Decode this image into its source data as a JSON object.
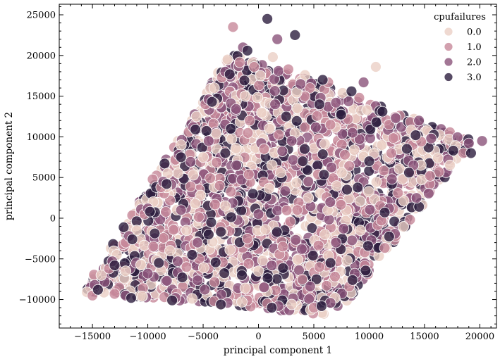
{
  "chart_data": {
    "type": "scatter",
    "xlabel": "principal component 1",
    "ylabel": "principal component 2",
    "xlim": [
      -18000,
      21500
    ],
    "ylim": [
      -13500,
      26300
    ],
    "xticks": [
      -15000,
      -10000,
      -5000,
      0,
      5000,
      10000,
      15000,
      20000
    ],
    "yticks": [
      -10000,
      -5000,
      0,
      5000,
      10000,
      15000,
      20000,
      25000
    ],
    "xtick_labels": [
      "−15000",
      "−10000",
      "−5000",
      "0",
      "5000",
      "10000",
      "15000",
      "20000"
    ],
    "ytick_labels": [
      "−10000",
      "−5000",
      "0",
      "5000",
      "10000",
      "15000",
      "20000",
      "25000"
    ],
    "legend": {
      "title": "cpufailures",
      "placement": "top-right",
      "entries": [
        "0.0",
        "1.0",
        "2.0",
        "3.0"
      ]
    },
    "grid": false,
    "marker_alpha": 0.8,
    "cloud_shape": "parallelogram",
    "cloud_corners": [
      [
        -15800,
        -9000
      ],
      [
        -2500,
        20500
      ],
      [
        19500,
        9500
      ],
      [
        7000,
        -12000
      ]
    ],
    "series": [
      {
        "name": "0.0",
        "color": "#ebcfc6",
        "points": [
          [
            -15500,
            -9100
          ],
          [
            -14200,
            -7000
          ],
          [
            -12800,
            -4500
          ],
          [
            -11000,
            -1500
          ],
          [
            -9500,
            2000
          ],
          [
            -8200,
            5500
          ],
          [
            -7000,
            9000
          ],
          [
            -5600,
            12500
          ],
          [
            -4000,
            16000
          ],
          [
            -2800,
            19500
          ],
          [
            1300,
            19800
          ],
          [
            4200,
            17600
          ],
          [
            7600,
            15400
          ],
          [
            10600,
            18600
          ],
          [
            9800,
            13300
          ],
          [
            13800,
            10800
          ],
          [
            17800,
            8900
          ],
          [
            16200,
            7400
          ],
          [
            13000,
            4800
          ],
          [
            10500,
            2300
          ],
          [
            9200,
            -1500
          ],
          [
            8000,
            -5200
          ],
          [
            6900,
            -9800
          ],
          [
            3000,
            -10600
          ],
          [
            -1500,
            -10300
          ],
          [
            -6000,
            -9900
          ],
          [
            -10500,
            -9600
          ],
          [
            -8000,
            -4000
          ],
          [
            -3000,
            1500
          ],
          [
            2000,
            5600
          ],
          [
            6000,
            -2000
          ],
          [
            -5000,
            7500
          ],
          [
            1000,
            11000
          ],
          [
            4500,
            2500
          ],
          [
            -12000,
            -6500
          ],
          [
            0,
            -6500
          ],
          [
            17300,
            6500
          ],
          [
            -1200,
            15000
          ],
          [
            3500,
            13500
          ],
          [
            -6500,
            -1500
          ]
        ]
      },
      {
        "name": "1.0",
        "color": "#c7889a",
        "points": [
          [
            -15000,
            -9500
          ],
          [
            -13500,
            -6200
          ],
          [
            -12000,
            -3000
          ],
          [
            -10300,
            500
          ],
          [
            -8800,
            3800
          ],
          [
            -7500,
            7200
          ],
          [
            -6300,
            10600
          ],
          [
            -4800,
            14000
          ],
          [
            -3300,
            17300
          ],
          [
            -2300,
            23500
          ],
          [
            -400,
            18600
          ],
          [
            2700,
            18300
          ],
          [
            6300,
            16700
          ],
          [
            9100,
            14800
          ],
          [
            11800,
            11500
          ],
          [
            14700,
            9400
          ],
          [
            18500,
            8000
          ],
          [
            15500,
            5200
          ],
          [
            12600,
            3100
          ],
          [
            11100,
            -300
          ],
          [
            9600,
            -4200
          ],
          [
            8200,
            -8400
          ],
          [
            5000,
            -11000
          ],
          [
            800,
            -10500
          ],
          [
            -4000,
            -10200
          ],
          [
            -8500,
            -9700
          ],
          [
            -13000,
            -9300
          ],
          [
            -6500,
            -6000
          ],
          [
            -1000,
            -2500
          ],
          [
            3500,
            1000
          ],
          [
            7800,
            7800
          ],
          [
            -3500,
            4000
          ],
          [
            500,
            8500
          ],
          [
            5500,
            -6000
          ],
          [
            -9500,
            -3500
          ],
          [
            2200,
            -3500
          ],
          [
            12000,
            8000
          ],
          [
            -800,
            12000
          ],
          [
            6500,
            11500
          ],
          [
            11000,
            1500
          ]
        ]
      },
      {
        "name": "2.0",
        "color": "#8b547a",
        "points": [
          [
            -14800,
            -8200
          ],
          [
            -13200,
            -5300
          ],
          [
            -11700,
            -2200
          ],
          [
            -10000,
            1200
          ],
          [
            -8600,
            4500
          ],
          [
            -7200,
            7800
          ],
          [
            -5900,
            11200
          ],
          [
            -4500,
            14600
          ],
          [
            -3000,
            18000
          ],
          [
            -1400,
            21000
          ],
          [
            1700,
            22000
          ],
          [
            3800,
            16500
          ],
          [
            7000,
            14200
          ],
          [
            9500,
            16700
          ],
          [
            12400,
            12300
          ],
          [
            15600,
            9800
          ],
          [
            19000,
            9200
          ],
          [
            20200,
            9500
          ],
          [
            14000,
            6500
          ],
          [
            11800,
            1200
          ],
          [
            10200,
            -2700
          ],
          [
            8700,
            -6800
          ],
          [
            6500,
            -10400
          ],
          [
            1800,
            -10800
          ],
          [
            -2800,
            -10400
          ],
          [
            -7500,
            -9800
          ],
          [
            -12000,
            -9500
          ],
          [
            -10000,
            -6800
          ],
          [
            -5500,
            -3000
          ],
          [
            0,
            500
          ],
          [
            4500,
            4500
          ],
          [
            8500,
            10500
          ],
          [
            -2000,
            6500
          ],
          [
            3000,
            9500
          ],
          [
            7000,
            -3000
          ],
          [
            -7000,
            1000
          ],
          [
            500,
            -8500
          ],
          [
            14500,
            12000
          ],
          [
            -4500,
            9500
          ],
          [
            1500,
            14000
          ]
        ]
      },
      {
        "name": "3.0",
        "color": "#2d1e3e",
        "points": [
          [
            -14500,
            -8800
          ],
          [
            -13000,
            -5800
          ],
          [
            -11400,
            -2600
          ],
          [
            -9800,
            800
          ],
          [
            -8300,
            4200
          ],
          [
            -7000,
            7500
          ],
          [
            -5700,
            10900
          ],
          [
            -4200,
            14300
          ],
          [
            -2600,
            17700
          ],
          [
            800,
            24500
          ],
          [
            -1000,
            20600
          ],
          [
            3300,
            22500
          ],
          [
            5800,
            17000
          ],
          [
            8400,
            15600
          ],
          [
            11200,
            13100
          ],
          [
            14200,
            10200
          ],
          [
            17600,
            8300
          ],
          [
            19200,
            8000
          ],
          [
            13600,
            5600
          ],
          [
            11400,
            700
          ],
          [
            9900,
            -3400
          ],
          [
            8500,
            -7600
          ],
          [
            5700,
            -10800
          ],
          [
            1200,
            -11000
          ],
          [
            -3400,
            -10600
          ],
          [
            -7800,
            -10100
          ],
          [
            -11500,
            -9800
          ],
          [
            -9000,
            -5500
          ],
          [
            -4500,
            -2000
          ],
          [
            -500,
            3000
          ],
          [
            4000,
            7000
          ],
          [
            8000,
            3500
          ],
          [
            -3000,
            8000
          ],
          [
            2500,
            12500
          ],
          [
            6500,
            -5500
          ],
          [
            -6000,
            -4500
          ],
          [
            -1500,
            -7000
          ],
          [
            10000,
            7000
          ],
          [
            5500,
            14000
          ],
          [
            -2500,
            11000
          ]
        ]
      }
    ]
  }
}
